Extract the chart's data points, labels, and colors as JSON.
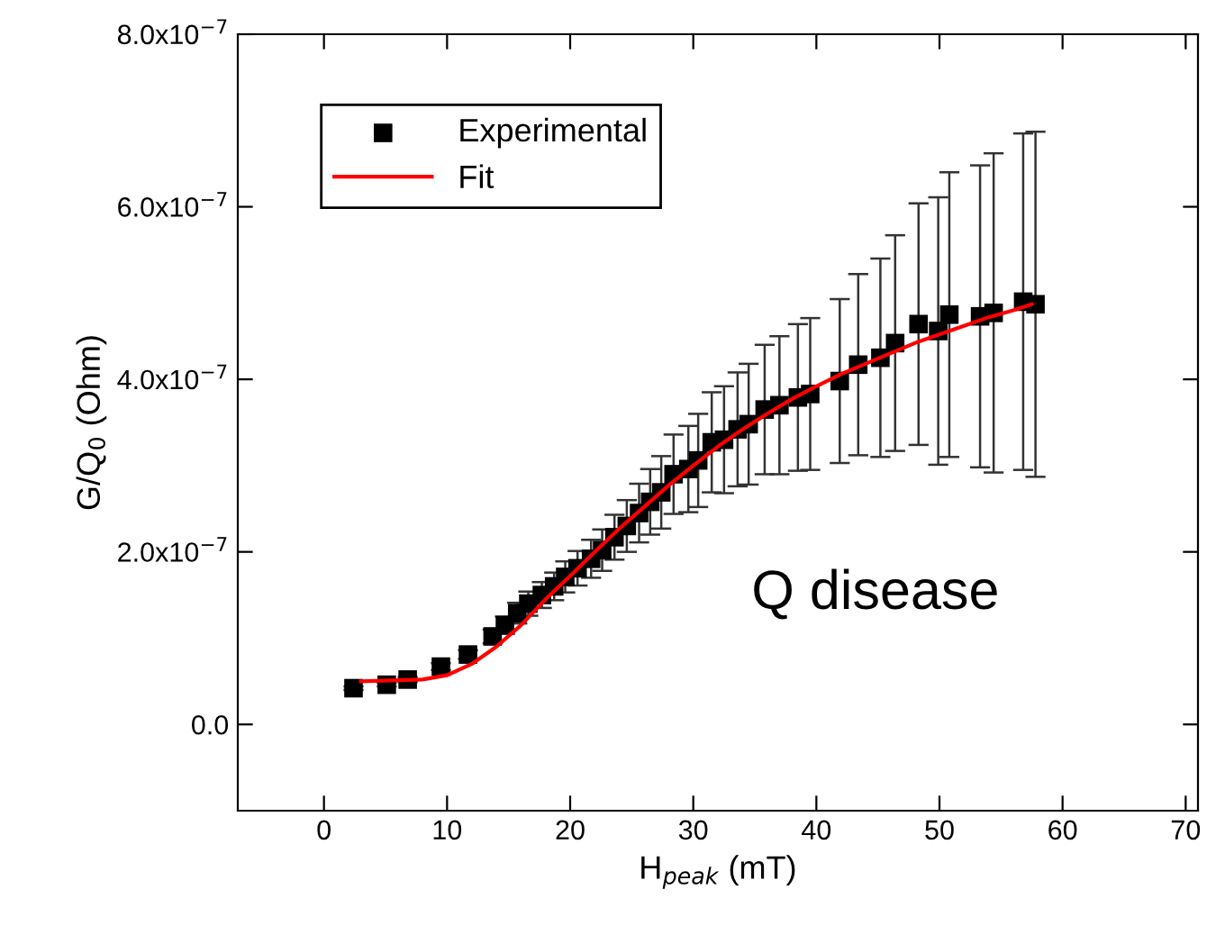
{
  "chart_data": {
    "type": "scatter",
    "xlabel": "H$_{peak}$ (mT)",
    "ylabel": "G/Q$_{0}$ (Ohm)",
    "xlim": [
      -7,
      71
    ],
    "xticks": [
      0,
      10,
      20,
      30,
      40,
      50,
      60,
      70
    ],
    "ylim": [
      -1e-07,
      8e-07
    ],
    "yticks": [
      {
        "value": 0,
        "label": "0.0"
      },
      {
        "value": 2e-07,
        "label": "2.0x10$^{−7}$"
      },
      {
        "value": 4e-07,
        "label": "4.0x10$^{−7}$"
      },
      {
        "value": 6e-07,
        "label": "6.0x10$^{−7}$"
      },
      {
        "value": 8e-07,
        "label": "8.0x10$^{−7}$"
      }
    ],
    "grid": false,
    "legend": "top left",
    "annotations": [
      "Q disease"
    ],
    "series": [
      {
        "name": "Experimental",
        "color": "#000000",
        "marker": "square",
        "x": [
          2.4,
          5.1,
          6.8,
          9.5,
          11.7,
          13.7,
          14.7,
          15.7,
          16.6,
          17.7,
          18.7,
          19.6,
          20.6,
          21.7,
          22.6,
          23.6,
          24.6,
          25.6,
          26.5,
          27.4,
          28.4,
          29.6,
          30.4,
          31.5,
          32.5,
          33.6,
          34.5,
          35.8,
          37.0,
          38.5,
          39.5,
          41.9,
          43.4,
          45.2,
          46.4,
          48.3,
          49.9,
          50.8,
          53.3,
          54.4,
          56.8,
          57.8
        ],
        "values": [
          4.2e-08,
          4.6e-08,
          5.2e-08,
          6.7e-08,
          8.1e-08,
          1.02e-07,
          1.15e-07,
          1.29e-07,
          1.4e-07,
          1.5e-07,
          1.6e-07,
          1.71e-07,
          1.81e-07,
          1.92e-07,
          2.02e-07,
          2.17e-07,
          2.3e-07,
          2.45e-07,
          2.58e-07,
          2.69e-07,
          2.9e-07,
          2.96e-07,
          3.06e-07,
          3.27e-07,
          3.3e-07,
          3.42e-07,
          3.48e-07,
          3.65e-07,
          3.7e-07,
          3.79e-07,
          3.83e-07,
          3.98e-07,
          4.17e-07,
          4.25e-07,
          4.42e-07,
          4.64e-07,
          4.56e-07,
          4.75e-07,
          4.73e-07,
          4.77e-07,
          4.9e-07,
          4.87e-07
        ],
        "errors": [
          2e-09,
          2e-09,
          3e-09,
          4e-09,
          5e-09,
          8e-09,
          1e-08,
          1.2e-08,
          1.4e-08,
          1.5e-08,
          1.6e-08,
          1.8e-08,
          2e-08,
          2.2e-08,
          2.4e-08,
          2.6e-08,
          3e-08,
          3.4e-08,
          3.8e-08,
          4.2e-08,
          4.6e-08,
          5e-08,
          5.4e-08,
          5.8e-08,
          6.2e-08,
          6.6e-08,
          7e-08,
          7.5e-08,
          8e-08,
          8.5e-08,
          8.8e-08,
          9.5e-08,
          1.05e-07,
          1.15e-07,
          1.25e-07,
          1.4e-07,
          1.55e-07,
          1.65e-07,
          1.75e-07,
          1.85e-07,
          1.95e-07,
          2e-07
        ]
      },
      {
        "name": "Fit",
        "type": "line",
        "color": "#ff0000",
        "line_style": "solid",
        "x": [
          3,
          8,
          10,
          12,
          14,
          16,
          18,
          20,
          22,
          24,
          26,
          28,
          30,
          32,
          34,
          36,
          38,
          40,
          42,
          44,
          46,
          48,
          50,
          52,
          54,
          56,
          57.5
        ],
        "values": [
          5e-08,
          5.2e-08,
          5.7e-08,
          7e-08,
          9e-08,
          1.15e-07,
          1.45e-07,
          1.72e-07,
          2e-07,
          2.27e-07,
          2.52e-07,
          2.77e-07,
          3e-07,
          3.22e-07,
          3.42e-07,
          3.6e-07,
          3.77e-07,
          3.92e-07,
          4.06e-07,
          4.18e-07,
          4.3e-07,
          4.42e-07,
          4.52e-07,
          4.62e-07,
          4.72e-07,
          4.8e-07,
          4.87e-07
        ]
      }
    ]
  }
}
